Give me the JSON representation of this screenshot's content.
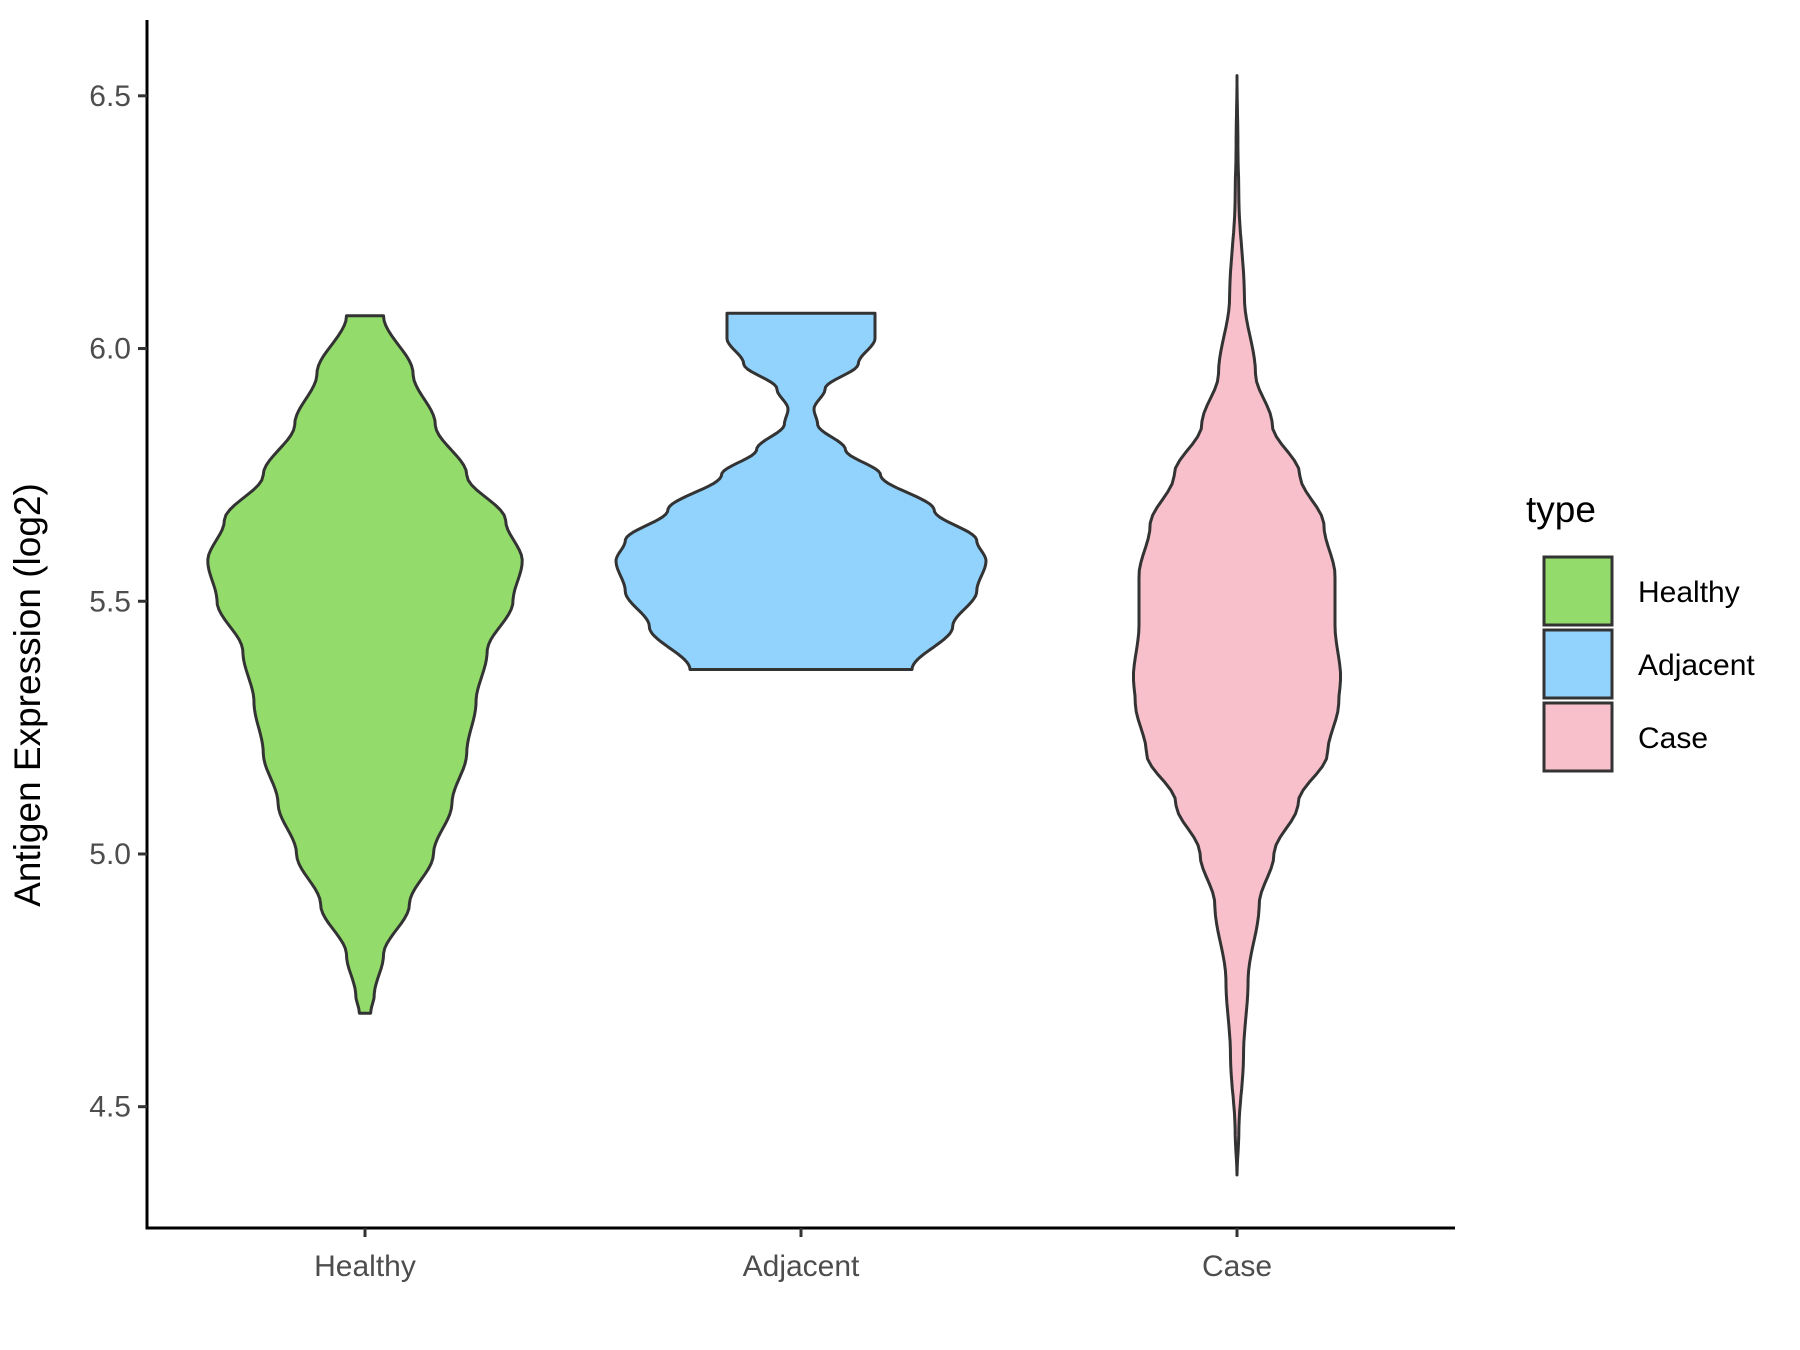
{
  "chart_data": {
    "type": "violin",
    "title": "",
    "xlabel": "",
    "ylabel": "Antigen Expression (log2)",
    "ylim": [
      4.26,
      6.65
    ],
    "yticks": [
      4.5,
      5.0,
      5.5,
      6.0,
      6.5
    ],
    "ytick_labels": [
      "4.5",
      "5.0",
      "5.5",
      "6.0",
      "6.5"
    ],
    "categories": [
      "Healthy",
      "Adjacent",
      "Case"
    ],
    "legend": {
      "title": "type",
      "position": "right",
      "entries": [
        "Healthy",
        "Adjacent",
        "Case"
      ]
    },
    "grid": false,
    "series": [
      {
        "name": "Healthy",
        "color": "#93dc6b",
        "outline": "#333333",
        "min": 4.685,
        "max": 6.065,
        "profile": [
          [
            4.685,
            0.03
          ],
          [
            4.72,
            0.05
          ],
          [
            4.8,
            0.1
          ],
          [
            4.9,
            0.24
          ],
          [
            5.0,
            0.37
          ],
          [
            5.1,
            0.47
          ],
          [
            5.2,
            0.55
          ],
          [
            5.3,
            0.6
          ],
          [
            5.4,
            0.66
          ],
          [
            5.5,
            0.8
          ],
          [
            5.58,
            0.85
          ],
          [
            5.66,
            0.76
          ],
          [
            5.75,
            0.55
          ],
          [
            5.85,
            0.38
          ],
          [
            5.95,
            0.26
          ],
          [
            6.065,
            0.1
          ]
        ]
      },
      {
        "name": "Adjacent",
        "color": "#92d3fd",
        "outline": "#333333",
        "min": 5.365,
        "max": 6.07,
        "profile": [
          [
            5.365,
            0.6
          ],
          [
            5.45,
            0.82
          ],
          [
            5.52,
            0.95
          ],
          [
            5.58,
            1.0
          ],
          [
            5.62,
            0.95
          ],
          [
            5.68,
            0.72
          ],
          [
            5.75,
            0.43
          ],
          [
            5.8,
            0.24
          ],
          [
            5.85,
            0.09
          ],
          [
            5.88,
            0.07
          ],
          [
            5.92,
            0.13
          ],
          [
            5.97,
            0.31
          ],
          [
            6.02,
            0.4
          ],
          [
            6.07,
            0.4
          ]
        ]
      },
      {
        "name": "Case",
        "color": "#f7c0cb",
        "outline": "#333333",
        "min": 4.365,
        "max": 6.54,
        "profile": [
          [
            4.365,
            0.0
          ],
          [
            4.45,
            0.01
          ],
          [
            4.6,
            0.035
          ],
          [
            4.75,
            0.06
          ],
          [
            4.9,
            0.12
          ],
          [
            5.0,
            0.2
          ],
          [
            5.1,
            0.33
          ],
          [
            5.2,
            0.49
          ],
          [
            5.3,
            0.55
          ],
          [
            5.35,
            0.56
          ],
          [
            5.45,
            0.53
          ],
          [
            5.55,
            0.53
          ],
          [
            5.65,
            0.47
          ],
          [
            5.75,
            0.34
          ],
          [
            5.85,
            0.19
          ],
          [
            5.95,
            0.1
          ],
          [
            6.1,
            0.04
          ],
          [
            6.3,
            0.01
          ],
          [
            6.4,
            0.005
          ],
          [
            6.54,
            0.0
          ]
        ]
      }
    ]
  }
}
